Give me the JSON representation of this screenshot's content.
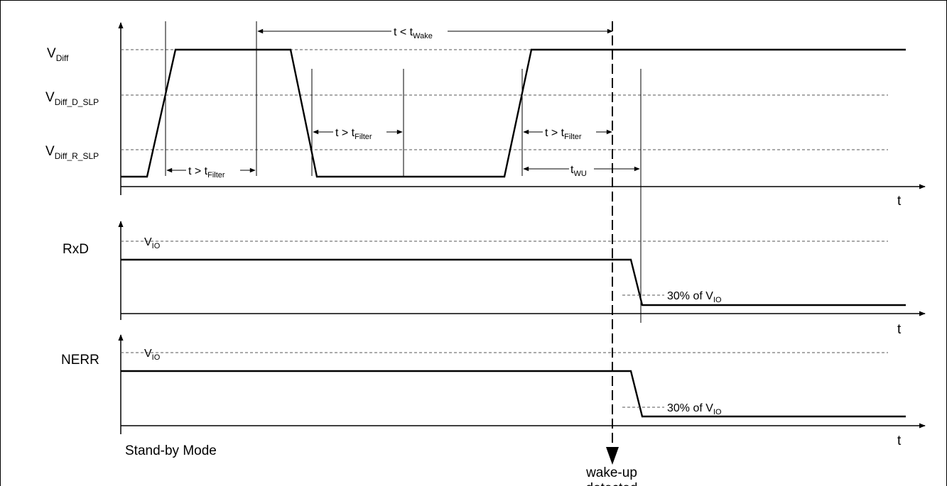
{
  "signals": {
    "vdiff": {
      "main": "V",
      "sub": "Diff"
    },
    "vdiff_d_slp": {
      "main": "V",
      "sub": "Diff_D_SLP"
    },
    "vdiff_r_slp": {
      "main": "V",
      "sub": "Diff_R_SLP"
    },
    "rxd": "RxD",
    "nerr": "NERR"
  },
  "axis_label": "t",
  "annotations": {
    "t_filter": {
      "main": "t > t",
      "sub": "Filter"
    },
    "t_wake": {
      "main": "t < t",
      "sub": "Wake"
    },
    "t_wu": {
      "main": "t",
      "sub": "WU"
    },
    "vio": {
      "main": "V",
      "sub": "IO"
    },
    "thirty_pct": {
      "main": "30% of V",
      "sub": "IO"
    }
  },
  "mode_label": "Stand-by Mode",
  "event_label": {
    "line1": "wake-up",
    "line2": "detected"
  }
}
